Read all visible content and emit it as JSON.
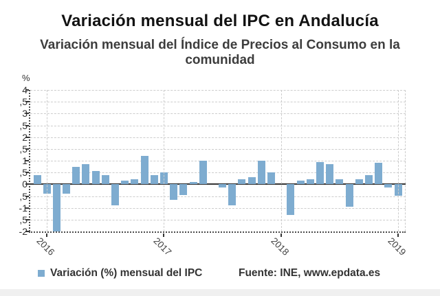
{
  "title": "Variación mensual del IPC en Andalucía",
  "subtitle": "Variación mensual del Índice de Precios al Consumo en la comunidad",
  "colors": {
    "bar": "#7eacd0",
    "zero_line": "#333333",
    "grid": "#cccccc",
    "axis": "#4a4a4a",
    "title_text": "#121212",
    "subtitle_text": "#3d3d3d",
    "tick_text": "#333333",
    "year_text": "#444444"
  },
  "y_axis": {
    "unit_label": "%",
    "min": -2,
    "max": 4,
    "step": 0.5,
    "tick_labels": [
      "4",
      ",5",
      "3",
      ",5",
      "2",
      ",5",
      "1",
      ",5",
      "0",
      ",5",
      "-1",
      ",5",
      "-2"
    ]
  },
  "x_axis": {
    "year_labels": [
      "2016",
      "2017",
      "2018",
      "2019"
    ]
  },
  "legend": {
    "label": "Variación (%) mensual del IPC",
    "source": "Fuente: INE, www.epdata.es"
  },
  "chart_data": {
    "type": "bar",
    "title": "Variación mensual del IPC en Andalucía",
    "subtitle": "Variación mensual del Índice de Precios al Consumo en la comunidad",
    "series_name": "Variación (%) mensual del IPC",
    "xlabel": "",
    "ylabel": "%",
    "ylim": [
      -2,
      4
    ],
    "ytick_step": 0.5,
    "grid": true,
    "legend_position": "bottom-left",
    "note": "January 2016 bar is clipped at the -2 axis minimum",
    "x": [
      "2015-11",
      "2015-12",
      "2016-01",
      "2016-02",
      "2016-03",
      "2016-04",
      "2016-05",
      "2016-06",
      "2016-07",
      "2016-08",
      "2016-09",
      "2016-10",
      "2016-11",
      "2016-12",
      "2017-01",
      "2017-02",
      "2017-03",
      "2017-04",
      "2017-05",
      "2017-06",
      "2017-07",
      "2017-08",
      "2017-09",
      "2017-10",
      "2017-11",
      "2017-12",
      "2018-01",
      "2018-02",
      "2018-03",
      "2018-04",
      "2018-05",
      "2018-06",
      "2018-07",
      "2018-08",
      "2018-09",
      "2018-10",
      "2018-11",
      "2018-12"
    ],
    "values": [
      0.4,
      -0.4,
      -2.0,
      -0.4,
      0.75,
      0.85,
      0.55,
      0.4,
      -0.9,
      0.15,
      0.2,
      1.2,
      0.4,
      0.5,
      -0.65,
      -0.45,
      0.1,
      1.0,
      0.0,
      -0.15,
      -0.9,
      0.2,
      0.3,
      1.0,
      0.5,
      0.0,
      -1.3,
      0.15,
      0.2,
      0.95,
      0.85,
      0.2,
      -0.95,
      0.2,
      0.4,
      0.9,
      -0.15,
      -0.5
    ]
  }
}
